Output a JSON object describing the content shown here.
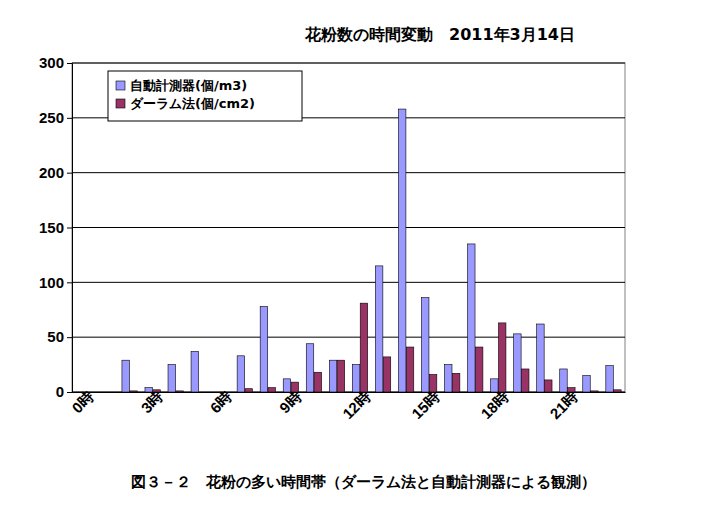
{
  "chart_data": {
    "type": "bar",
    "title": "花粉数の時間変動　2011年3月14日",
    "caption": "図３－２　花粉の多い時間帯（ダーラム法と自動計測器による観測）",
    "categories": [
      "0時",
      null,
      null,
      "3時",
      null,
      null,
      "6時",
      null,
      null,
      "9時",
      null,
      null,
      "12時",
      null,
      null,
      "15時",
      null,
      null,
      "18時",
      null,
      null,
      "21時",
      null,
      null
    ],
    "series": [
      {
        "name": "自動計測器(個/m3)",
        "color": "#9999ff",
        "values": [
          0,
          0,
          29,
          4,
          25,
          37,
          0,
          33,
          78,
          12,
          44,
          29,
          25,
          115,
          258,
          86,
          25,
          135,
          12,
          53,
          62,
          21,
          15,
          24
        ]
      },
      {
        "name": "ダーラム法(個/cm2)",
        "color": "#993366",
        "values": [
          0,
          0,
          1,
          2,
          1,
          0,
          0,
          3,
          4,
          9,
          18,
          29,
          81,
          32,
          41,
          16,
          17,
          41,
          63,
          21,
          11,
          4,
          1,
          2
        ]
      }
    ],
    "ylim": [
      0,
      300
    ],
    "yticks": [
      0,
      50,
      100,
      150,
      200,
      250,
      300
    ],
    "grid": true,
    "legend": "top-left"
  }
}
